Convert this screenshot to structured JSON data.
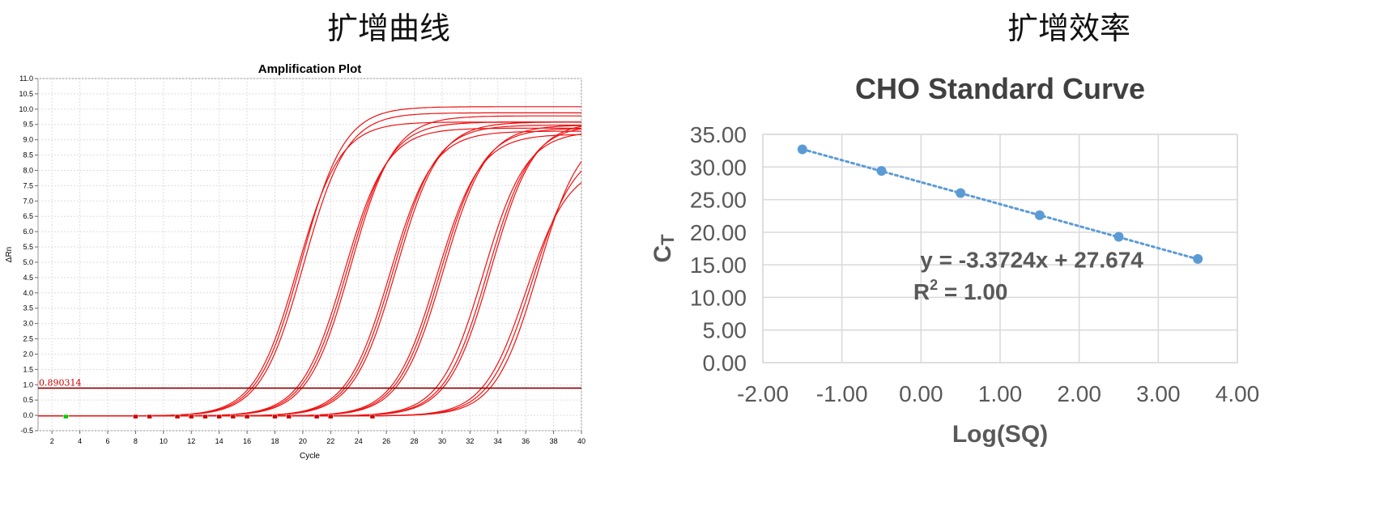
{
  "headings": {
    "left": "扩增曲线",
    "right": "扩增效率"
  },
  "chart_data": [
    {
      "type": "line",
      "title": "Amplification Plot",
      "xlabel": "Cycle",
      "ylabel": "ΔRn",
      "xlim": [
        1,
        40
      ],
      "ylim": [
        -0.5,
        11.0
      ],
      "x_ticks": [
        2,
        4,
        6,
        8,
        10,
        12,
        14,
        16,
        18,
        20,
        22,
        24,
        26,
        28,
        30,
        32,
        34,
        36,
        38,
        40
      ],
      "y_ticks": [
        "11.0",
        "10.5",
        "10.0",
        "9.5",
        "9.0",
        "8.5",
        "8.0",
        "7.5",
        "7.0",
        "6.5",
        "6.0",
        "5.5",
        "5.0",
        "4.5",
        "4.0",
        "3.5",
        "3.0",
        "2.5",
        "2.0",
        "1.5",
        "1.0",
        "0.5",
        "0.0",
        "-0.5"
      ],
      "threshold": {
        "label": "0.890314",
        "value": 0.89
      },
      "grid": true,
      "line_color": "#ee1111",
      "threshold_color": "#8b0000",
      "series": [
        {
          "ct": 16.1,
          "plateau": 9.6
        },
        {
          "ct": 16.3,
          "plateau": 10.1
        },
        {
          "ct": 16.5,
          "plateau": 9.9
        },
        {
          "ct": 19.5,
          "plateau": 9.4
        },
        {
          "ct": 19.7,
          "plateau": 9.6
        },
        {
          "ct": 19.9,
          "plateau": 9.8
        },
        {
          "ct": 22.8,
          "plateau": 9.3
        },
        {
          "ct": 23.0,
          "plateau": 9.5
        },
        {
          "ct": 23.2,
          "plateau": 9.6
        },
        {
          "ct": 26.2,
          "plateau": 9.2
        },
        {
          "ct": 26.4,
          "plateau": 9.4
        },
        {
          "ct": 26.6,
          "plateau": 9.5
        },
        {
          "ct": 29.5,
          "plateau": 9.3
        },
        {
          "ct": 29.8,
          "plateau": 9.5
        },
        {
          "ct": 30.0,
          "plateau": 9.6
        },
        {
          "ct": 32.8,
          "plateau": 8.2
        },
        {
          "ct": 33.1,
          "plateau": 8.8
        },
        {
          "ct": 33.4,
          "plateau": 9.4
        }
      ],
      "markers": [
        {
          "cycle": 3,
          "color": "#00cc00"
        },
        {
          "cycle": 8,
          "color": "#cc0000"
        },
        {
          "cycle": 9,
          "color": "#cc0000"
        },
        {
          "cycle": 11,
          "color": "#cc0000"
        },
        {
          "cycle": 12,
          "color": "#cc0000"
        },
        {
          "cycle": 13,
          "color": "#cc0000"
        },
        {
          "cycle": 14,
          "color": "#cc0000"
        },
        {
          "cycle": 15,
          "color": "#cc0000"
        },
        {
          "cycle": 16,
          "color": "#cc0000"
        },
        {
          "cycle": 18,
          "color": "#cc0000"
        },
        {
          "cycle": 19,
          "color": "#cc0000"
        },
        {
          "cycle": 21,
          "color": "#cc0000"
        },
        {
          "cycle": 22,
          "color": "#cc0000"
        },
        {
          "cycle": 25,
          "color": "#cc0000"
        }
      ]
    },
    {
      "type": "scatter",
      "title": "CHO Standard Curve",
      "xlabel": "Log(SQ)",
      "ylabel": "CT",
      "xlim": [
        -2.0,
        4.0
      ],
      "ylim": [
        0.0,
        35.0
      ],
      "x_ticks": [
        "-2.00",
        "-1.00",
        "0.00",
        "1.00",
        "2.00",
        "3.00",
        "4.00"
      ],
      "y_ticks": [
        "35.00",
        "30.00",
        "25.00",
        "20.00",
        "15.00",
        "10.00",
        "5.00",
        "0.00"
      ],
      "points": [
        {
          "x": -1.5,
          "y": 32.7
        },
        {
          "x": -0.5,
          "y": 29.4
        },
        {
          "x": 0.5,
          "y": 26.0
        },
        {
          "x": 1.5,
          "y": 22.6
        },
        {
          "x": 2.5,
          "y": 19.3
        },
        {
          "x": 3.5,
          "y": 15.9
        }
      ],
      "trendline": {
        "slope": -3.3724,
        "intercept": 27.674,
        "style": "dotted"
      },
      "equation_text": "y = -3.3724x + 27.674",
      "r2_prefix": "R",
      "r2_sup": "2",
      "r2_rest": " = 1.00",
      "ylabel_main": "C",
      "ylabel_sub": "T",
      "grid": true,
      "point_color": "#5b9bd5"
    }
  ]
}
